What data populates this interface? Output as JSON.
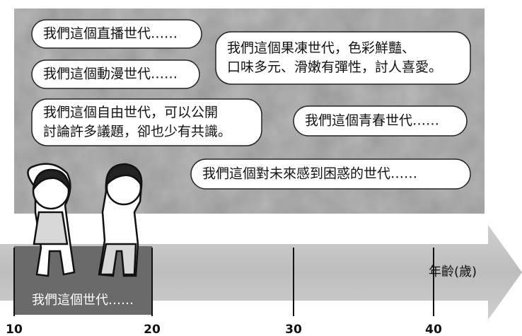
{
  "bubbles": [
    {
      "lines": [
        "我們這個直播世代……"
      ]
    },
    {
      "lines": [
        "我們這個動漫世代……"
      ]
    },
    {
      "lines": [
        "我們這個自由世代，可以公開",
        "討論許多議題，卻也少有共識。"
      ]
    },
    {
      "lines": [
        "我們這個果凍世代，色彩鮮豔、",
        "口味多元、滑嫩有彈性，討人喜愛。"
      ]
    },
    {
      "lines": [
        "我們這個青春世代……"
      ]
    },
    {
      "lines": [
        "我們這個對未來感到困惑的世代……"
      ]
    }
  ],
  "timeline": {
    "axis_label": "年齡(歲)",
    "ticks": [
      10,
      20,
      30,
      40
    ],
    "highlight_label": "我們這個世代……"
  }
}
